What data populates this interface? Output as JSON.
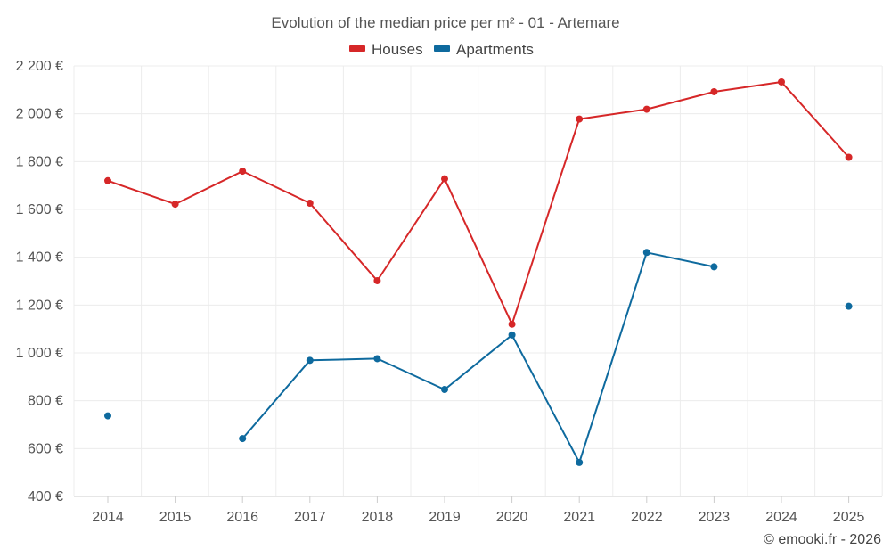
{
  "chart_data": {
    "type": "line",
    "title": "Evolution of the median price per m² - 01 - Artemare",
    "xlabel": "",
    "ylabel": "",
    "x": [
      "2014",
      "2015",
      "2016",
      "2017",
      "2018",
      "2019",
      "2020",
      "2021",
      "2022",
      "2023",
      "2024",
      "2025"
    ],
    "ylim": [
      400,
      2200
    ],
    "yticks": [
      400,
      600,
      800,
      1000,
      1200,
      1400,
      1600,
      1800,
      2000,
      2200
    ],
    "ytick_labels": [
      "400 €",
      "600 €",
      "800 €",
      "1 000 €",
      "1 200 €",
      "1 400 €",
      "1 600 €",
      "1 800 €",
      "2 000 €",
      "2 200 €"
    ],
    "grid": true,
    "legend_position": "top-center",
    "series": [
      {
        "name": "Houses",
        "color": "#d62728",
        "values": [
          1720,
          1622,
          1760,
          1626,
          1302,
          1728,
          1120,
          1978,
          2019,
          2092,
          2133,
          1818
        ]
      },
      {
        "name": "Apartments",
        "color": "#0e6a9e",
        "values": [
          737,
          null,
          642,
          969,
          976,
          847,
          1075,
          542,
          1420,
          1360,
          null,
          1195
        ]
      }
    ]
  },
  "credit": "© emooki.fr - 2026"
}
